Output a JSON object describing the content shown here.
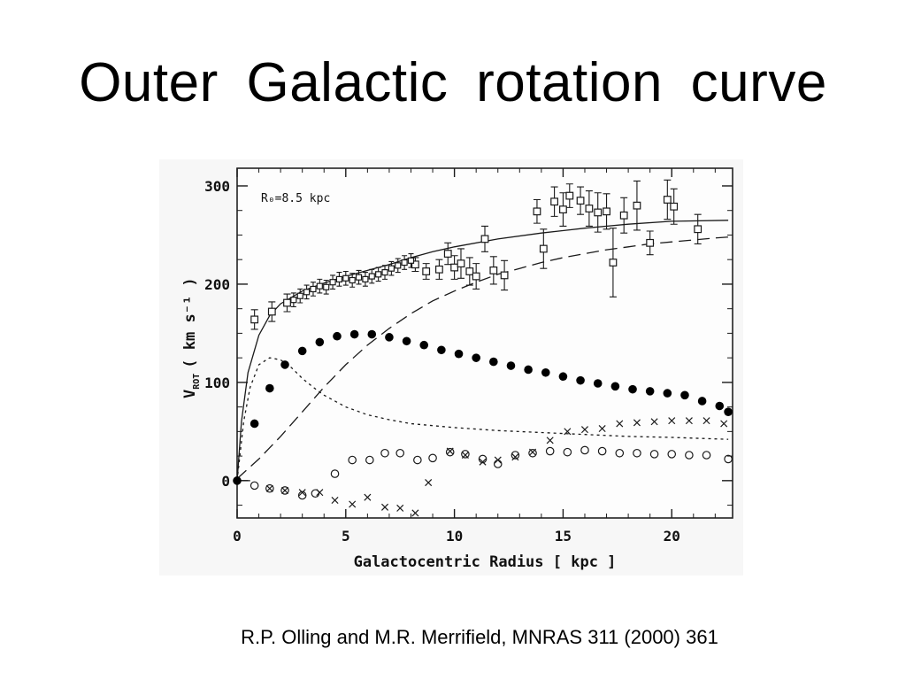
{
  "slide": {
    "title": "Outer  Galactic  rotation  curve",
    "citation": "R.P. Olling and M.R. Merrifield, MNRAS 311 (2000) 361"
  },
  "chart_data": {
    "type": "scatter",
    "annotation": "R₀=8.5 kpc",
    "xlabel": "Galactocentric Radius [ kpc ]",
    "ylabel_main": "V",
    "ylabel_sub": "ROT",
    "ylabel_units": "( km s⁻¹ )",
    "xlim": [
      0,
      22.8
    ],
    "ylim": [
      -38,
      318
    ],
    "xticks": [
      0,
      5,
      10,
      15,
      20
    ],
    "yticks": [
      0,
      100,
      200,
      300
    ],
    "grid": false,
    "series": [
      {
        "marker": "filled-circle",
        "points": [
          [
            0,
            0
          ],
          [
            0.8,
            58
          ],
          [
            1.5,
            94
          ],
          [
            2.2,
            118
          ],
          [
            3.0,
            132
          ],
          [
            3.8,
            141
          ],
          [
            4.6,
            147
          ],
          [
            5.4,
            149
          ],
          [
            6.2,
            149
          ],
          [
            7.0,
            146
          ],
          [
            7.8,
            142
          ],
          [
            8.6,
            138
          ],
          [
            9.4,
            133
          ],
          [
            10.2,
            129
          ],
          [
            11.0,
            125
          ],
          [
            11.8,
            121
          ],
          [
            12.6,
            117
          ],
          [
            13.4,
            113
          ],
          [
            14.2,
            110
          ],
          [
            15.0,
            106
          ],
          [
            15.8,
            102
          ],
          [
            16.6,
            99
          ],
          [
            17.4,
            96
          ],
          [
            18.2,
            93
          ],
          [
            19.0,
            91
          ],
          [
            19.8,
            89
          ],
          [
            20.6,
            87
          ],
          [
            21.4,
            81
          ],
          [
            22.2,
            76
          ],
          [
            22.6,
            70
          ]
        ]
      },
      {
        "marker": "open-circle",
        "points": [
          [
            0.8,
            -5
          ],
          [
            1.5,
            -8
          ],
          [
            2.2,
            -10
          ],
          [
            3.0,
            -15
          ],
          [
            3.6,
            -13
          ],
          [
            4.5,
            7
          ],
          [
            5.3,
            21
          ],
          [
            6.1,
            21
          ],
          [
            6.8,
            28
          ],
          [
            7.5,
            28
          ],
          [
            8.3,
            21
          ],
          [
            9.0,
            23
          ],
          [
            9.8,
            29
          ],
          [
            10.5,
            27
          ],
          [
            11.3,
            22
          ],
          [
            12.0,
            17
          ],
          [
            12.8,
            26
          ],
          [
            13.6,
            28
          ],
          [
            14.4,
            30
          ],
          [
            15.2,
            29
          ],
          [
            16.0,
            31
          ],
          [
            16.8,
            30
          ],
          [
            17.6,
            28
          ],
          [
            18.4,
            28
          ],
          [
            19.2,
            27
          ],
          [
            20.0,
            27
          ],
          [
            20.8,
            26
          ],
          [
            21.6,
            26
          ],
          [
            22.6,
            22
          ]
        ]
      },
      {
        "marker": "cross",
        "points": [
          [
            1.5,
            -8
          ],
          [
            2.2,
            -10
          ],
          [
            3.0,
            -12
          ],
          [
            3.8,
            -12
          ],
          [
            4.5,
            -20
          ],
          [
            5.3,
            -24
          ],
          [
            6.0,
            -17
          ],
          [
            6.8,
            -27
          ],
          [
            7.5,
            -28
          ],
          [
            8.2,
            -33
          ],
          [
            8.8,
            -2
          ],
          [
            9.8,
            30
          ],
          [
            10.5,
            26
          ],
          [
            11.3,
            19
          ],
          [
            12.0,
            21
          ],
          [
            12.8,
            24
          ],
          [
            13.6,
            29
          ],
          [
            14.4,
            41
          ],
          [
            15.2,
            50
          ],
          [
            16.0,
            52
          ],
          [
            16.8,
            53
          ],
          [
            17.6,
            58
          ],
          [
            18.4,
            59
          ],
          [
            19.2,
            60
          ],
          [
            20.0,
            61
          ],
          [
            20.8,
            61
          ],
          [
            21.6,
            61
          ],
          [
            22.4,
            58
          ]
        ]
      },
      {
        "marker": "open-square",
        "points": [
          [
            0.8,
            164,
            10
          ],
          [
            1.6,
            172,
            10
          ],
          [
            2.3,
            181,
            9
          ],
          [
            8.2,
            220,
            7
          ],
          [
            8.7,
            213,
            8
          ],
          [
            9.3,
            215,
            10
          ],
          [
            9.7,
            231,
            11
          ],
          [
            10.0,
            217,
            12
          ],
          [
            10.3,
            221,
            15
          ],
          [
            10.7,
            213,
            14
          ],
          [
            11.0,
            208,
            13
          ],
          [
            11.4,
            246,
            13
          ],
          [
            11.8,
            214,
            14
          ],
          [
            12.3,
            209,
            15
          ],
          [
            13.8,
            274,
            12
          ],
          [
            14.1,
            236,
            20
          ],
          [
            14.6,
            284,
            15
          ],
          [
            15.0,
            276,
            17
          ],
          [
            15.3,
            290,
            12
          ],
          [
            15.8,
            285,
            14
          ],
          [
            16.2,
            277,
            18
          ],
          [
            16.6,
            273,
            20
          ],
          [
            17.0,
            274,
            18
          ],
          [
            17.3,
            222,
            35
          ],
          [
            17.8,
            270,
            18
          ],
          [
            18.4,
            280,
            25
          ],
          [
            19.0,
            242,
            12
          ],
          [
            19.8,
            286,
            20
          ],
          [
            20.1,
            279,
            18
          ],
          [
            21.2,
            256,
            15
          ]
        ]
      },
      {
        "marker": "inner-cluster",
        "points": [
          [
            2.6,
            184
          ],
          [
            2.9,
            188
          ],
          [
            3.2,
            192
          ],
          [
            3.5,
            195
          ],
          [
            3.8,
            198
          ],
          [
            4.1,
            197
          ],
          [
            4.4,
            202
          ],
          [
            4.7,
            205
          ],
          [
            5.0,
            206
          ],
          [
            5.3,
            204
          ],
          [
            5.6,
            207
          ],
          [
            5.9,
            205
          ],
          [
            6.2,
            208
          ],
          [
            6.5,
            210
          ],
          [
            6.8,
            212
          ],
          [
            7.1,
            216
          ],
          [
            7.4,
            219
          ],
          [
            7.7,
            222
          ],
          [
            8.0,
            224
          ]
        ]
      },
      {
        "line": "solid",
        "description": "total",
        "points": [
          [
            0,
            0
          ],
          [
            0.2,
            60
          ],
          [
            0.5,
            110
          ],
          [
            1.0,
            148
          ],
          [
            1.5,
            168
          ],
          [
            2.0,
            180
          ],
          [
            3.0,
            193
          ],
          [
            4.0,
            201
          ],
          [
            5.0,
            208
          ],
          [
            6.0,
            214
          ],
          [
            7.0,
            220
          ],
          [
            8.0,
            227
          ],
          [
            9.0,
            233
          ],
          [
            10.0,
            238
          ],
          [
            12.0,
            246
          ],
          [
            14.0,
            252
          ],
          [
            16.0,
            257
          ],
          [
            18.0,
            261
          ],
          [
            20.0,
            264
          ],
          [
            22.6,
            265
          ]
        ]
      },
      {
        "line": "dashed",
        "description": "dark halo",
        "points": [
          [
            0,
            2
          ],
          [
            1,
            22
          ],
          [
            2,
            45
          ],
          [
            3,
            70
          ],
          [
            4,
            95
          ],
          [
            5,
            118
          ],
          [
            6,
            138
          ],
          [
            7,
            155
          ],
          [
            8,
            170
          ],
          [
            9,
            183
          ],
          [
            10,
            193
          ],
          [
            11,
            202
          ],
          [
            12,
            210
          ],
          [
            13,
            216
          ],
          [
            14,
            222
          ],
          [
            15,
            227
          ],
          [
            16,
            231
          ],
          [
            17,
            235
          ],
          [
            18,
            238
          ],
          [
            19,
            241
          ],
          [
            20,
            243
          ],
          [
            21,
            245
          ],
          [
            22,
            247
          ],
          [
            22.6,
            248
          ]
        ]
      },
      {
        "line": "dotted",
        "description": "bulge",
        "points": [
          [
            0,
            0
          ],
          [
            0.3,
            60
          ],
          [
            0.6,
            95
          ],
          [
            1.0,
            118
          ],
          [
            1.5,
            125
          ],
          [
            2.0,
            123
          ],
          [
            2.5,
            115
          ],
          [
            3.0,
            104
          ],
          [
            3.5,
            95
          ],
          [
            4.0,
            87
          ],
          [
            5.0,
            75
          ],
          [
            6.0,
            67
          ],
          [
            7.0,
            62
          ],
          [
            8.0,
            58
          ],
          [
            9.0,
            56
          ],
          [
            10.0,
            54
          ],
          [
            12.0,
            51
          ],
          [
            14.0,
            49
          ],
          [
            16.0,
            47
          ],
          [
            18.0,
            45
          ],
          [
            20.0,
            44
          ],
          [
            22.6,
            42
          ]
        ]
      }
    ]
  }
}
